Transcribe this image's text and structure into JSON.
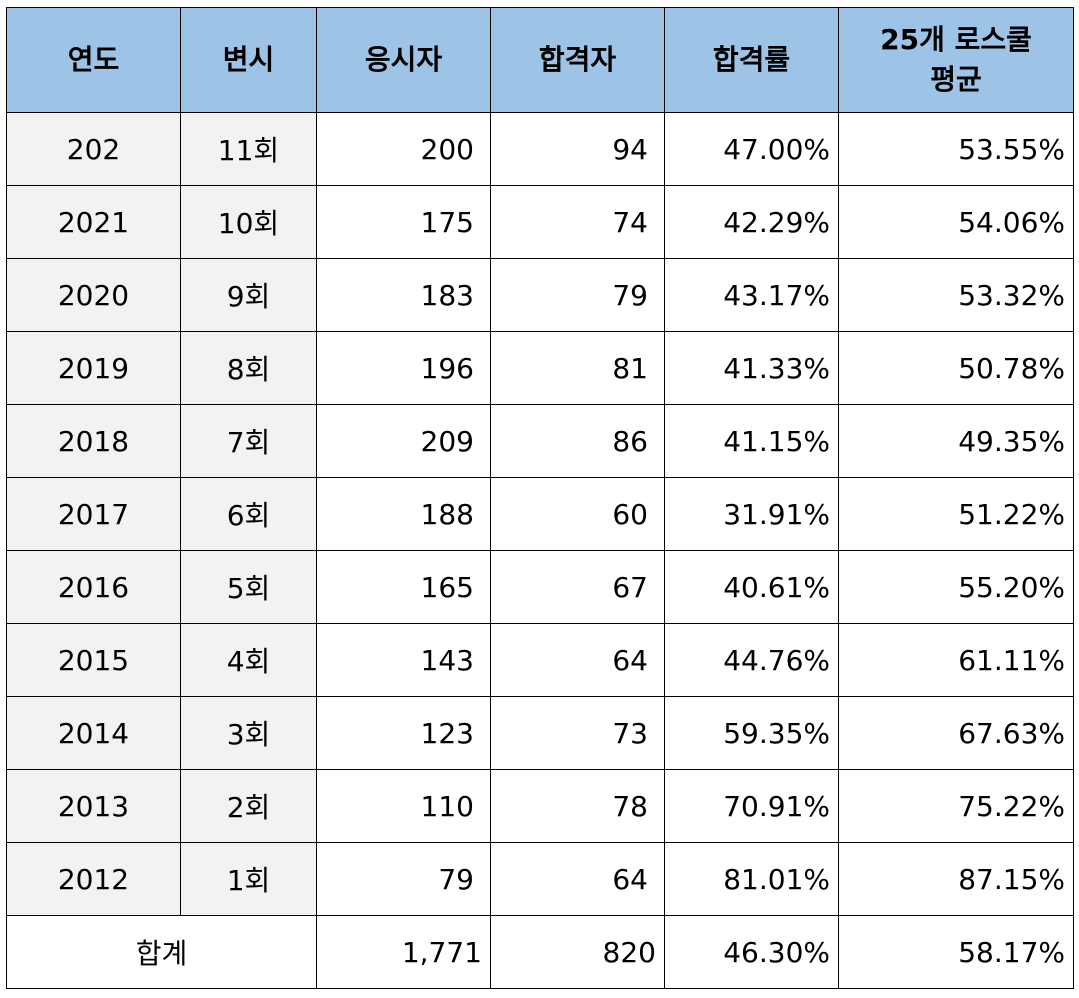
{
  "headers": [
    "연도",
    "변시",
    "응시자",
    "합격자",
    "합격률",
    "25개 로스쿨 평균"
  ],
  "rows": [
    {
      "year": "202",
      "exam": "11회",
      "applicants": "200",
      "passers": "94",
      "rate": "47.00%",
      "avg": "53.55%"
    },
    {
      "year": "2021",
      "exam": "10회",
      "applicants": "175",
      "passers": "74",
      "rate": "42.29%",
      "avg": "54.06%"
    },
    {
      "year": "2020",
      "exam": "9회",
      "applicants": "183",
      "passers": "79",
      "rate": "43.17%",
      "avg": "53.32%"
    },
    {
      "year": "2019",
      "exam": "8회",
      "applicants": "196",
      "passers": "81",
      "rate": "41.33%",
      "avg": "50.78%"
    },
    {
      "year": "2018",
      "exam": "7회",
      "applicants": "209",
      "passers": "86",
      "rate": "41.15%",
      "avg": "49.35%"
    },
    {
      "year": "2017",
      "exam": "6회",
      "applicants": "188",
      "passers": "60",
      "rate": "31.91%",
      "avg": "51.22%"
    },
    {
      "year": "2016",
      "exam": "5회",
      "applicants": "165",
      "passers": "67",
      "rate": "40.61%",
      "avg": "55.20%"
    },
    {
      "year": "2015",
      "exam": "4회",
      "applicants": "143",
      "passers": "64",
      "rate": "44.76%",
      "avg": "61.11%"
    },
    {
      "year": "2014",
      "exam": "3회",
      "applicants": "123",
      "passers": "73",
      "rate": "59.35%",
      "avg": "67.63%"
    },
    {
      "year": "2013",
      "exam": "2회",
      "applicants": "110",
      "passers": "78",
      "rate": "70.91%",
      "avg": "75.22%"
    },
    {
      "year": "2012",
      "exam": "1회",
      "applicants": "79",
      "passers": "64",
      "rate": "81.01%",
      "avg": "87.15%"
    }
  ],
  "total": {
    "label": "합계",
    "applicants": "1,771",
    "passers": "820",
    "rate": "46.30%",
    "avg": "58.17%"
  },
  "colors": {
    "header_bg": "#9dc3e6",
    "label_bg": "#f2f2f2",
    "border": "#000000"
  }
}
